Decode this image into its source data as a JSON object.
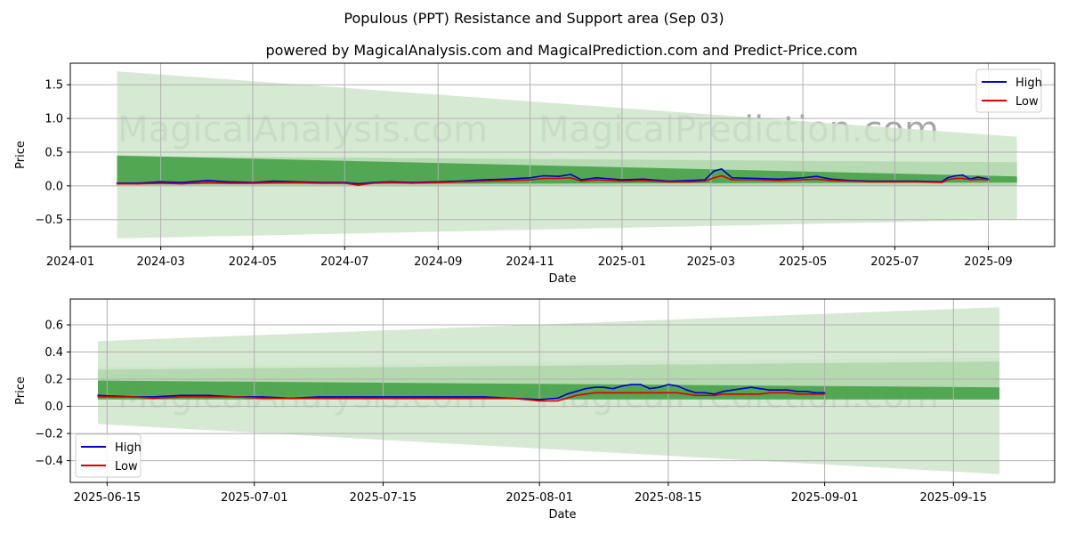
{
  "suptitle": "Populous (PPT) Resistance and Support area (Sep 03)",
  "title": "powered by MagicalAnalysis.com and MagicalPrediction.com and Predict-Price.com",
  "watermarks": [
    "MagicalAnalysis.com",
    "MagicalPrediction.com"
  ],
  "colors": {
    "high": "#0000cc",
    "low": "#dd0000",
    "band_light": "#cfe6cb",
    "band_mid": "#a8d3a2",
    "band_dark": "#3f9e42"
  },
  "chart_data": [
    {
      "type": "line",
      "title": "powered by MagicalAnalysis.com and MagicalPrediction.com and Predict-Price.com",
      "xlabel": "Date",
      "ylabel": "Price",
      "ylim": [
        -0.9,
        1.82
      ],
      "xlim": [
        "2024-01-01",
        "2025-10-15"
      ],
      "xticks": [
        "2024-01",
        "2024-03",
        "2024-05",
        "2024-07",
        "2024-09",
        "2024-11",
        "2025-01",
        "2025-03",
        "2025-05",
        "2025-07",
        "2025-09"
      ],
      "yticks": [
        -0.5,
        0.0,
        0.5,
        1.0,
        1.5
      ],
      "ytick_labels": [
        "−0.5",
        "0.0",
        "0.5",
        "1.0",
        "1.5"
      ],
      "grid": true,
      "legend": "upper right",
      "bands": [
        {
          "x": [
            "2024-02-01",
            "2025-09-20"
          ],
          "upper": [
            1.7,
            0.73
          ],
          "lower": [
            -0.78,
            -0.5
          ],
          "shade": "light"
        },
        {
          "x": [
            "2024-02-01",
            "2025-09-20"
          ],
          "upper": [
            0.44,
            0.35
          ],
          "lower": [
            0.0,
            0.0
          ],
          "shade": "mid"
        },
        {
          "x": [
            "2024-02-01",
            "2025-09-20"
          ],
          "upper": [
            0.45,
            0.14
          ],
          "lower": [
            0.02,
            0.05
          ],
          "shade": "dark"
        }
      ],
      "series": [
        {
          "name": "High",
          "color": "#0000cc",
          "x": [
            "2024-02-01",
            "2024-02-15",
            "2024-03-01",
            "2024-03-15",
            "2024-04-01",
            "2024-04-15",
            "2024-05-01",
            "2024-05-15",
            "2024-06-01",
            "2024-06-15",
            "2024-07-01",
            "2024-07-10",
            "2024-07-20",
            "2024-08-01",
            "2024-08-15",
            "2024-09-01",
            "2024-09-15",
            "2024-10-01",
            "2024-10-15",
            "2024-11-01",
            "2024-11-10",
            "2024-11-20",
            "2024-11-28",
            "2024-12-05",
            "2024-12-15",
            "2025-01-01",
            "2025-01-15",
            "2025-02-01",
            "2025-02-15",
            "2025-02-25",
            "2025-03-03",
            "2025-03-08",
            "2025-03-15",
            "2025-04-01",
            "2025-04-15",
            "2025-05-01",
            "2025-05-10",
            "2025-05-20",
            "2025-06-01",
            "2025-06-15",
            "2025-07-01",
            "2025-07-15",
            "2025-08-01",
            "2025-08-05",
            "2025-08-10",
            "2025-08-15",
            "2025-08-20",
            "2025-08-25",
            "2025-09-01"
          ],
          "values": [
            0.04,
            0.04,
            0.06,
            0.05,
            0.08,
            0.06,
            0.05,
            0.07,
            0.06,
            0.05,
            0.05,
            0.03,
            0.05,
            0.06,
            0.05,
            0.06,
            0.07,
            0.09,
            0.1,
            0.12,
            0.15,
            0.14,
            0.17,
            0.09,
            0.12,
            0.09,
            0.1,
            0.07,
            0.08,
            0.09,
            0.22,
            0.25,
            0.12,
            0.11,
            0.1,
            0.12,
            0.14,
            0.1,
            0.08,
            0.07,
            0.07,
            0.07,
            0.06,
            0.12,
            0.15,
            0.16,
            0.1,
            0.13,
            0.1
          ]
        },
        {
          "name": "Low",
          "color": "#dd0000",
          "x": [
            "2024-02-01",
            "2024-02-15",
            "2024-03-01",
            "2024-03-15",
            "2024-04-01",
            "2024-04-15",
            "2024-05-01",
            "2024-05-15",
            "2024-06-01",
            "2024-06-15",
            "2024-07-01",
            "2024-07-10",
            "2024-07-20",
            "2024-08-01",
            "2024-08-15",
            "2024-09-01",
            "2024-09-15",
            "2024-10-01",
            "2024-10-15",
            "2024-11-01",
            "2024-11-10",
            "2024-11-20",
            "2024-11-28",
            "2024-12-05",
            "2024-12-15",
            "2025-01-01",
            "2025-01-15",
            "2025-02-01",
            "2025-02-15",
            "2025-02-25",
            "2025-03-03",
            "2025-03-08",
            "2025-03-15",
            "2025-04-01",
            "2025-04-15",
            "2025-05-01",
            "2025-05-10",
            "2025-05-20",
            "2025-06-01",
            "2025-06-15",
            "2025-07-01",
            "2025-07-15",
            "2025-08-01",
            "2025-08-05",
            "2025-08-10",
            "2025-08-15",
            "2025-08-20",
            "2025-08-25",
            "2025-09-01"
          ],
          "values": [
            0.03,
            0.03,
            0.04,
            0.03,
            0.05,
            0.04,
            0.04,
            0.05,
            0.05,
            0.04,
            0.04,
            0.01,
            0.04,
            0.05,
            0.04,
            0.05,
            0.06,
            0.07,
            0.08,
            0.09,
            0.11,
            0.11,
            0.12,
            0.07,
            0.09,
            0.07,
            0.08,
            0.06,
            0.06,
            0.07,
            0.12,
            0.15,
            0.09,
            0.09,
            0.08,
            0.09,
            0.1,
            0.08,
            0.07,
            0.06,
            0.06,
            0.06,
            0.05,
            0.09,
            0.11,
            0.11,
            0.09,
            0.1,
            0.09
          ]
        }
      ]
    },
    {
      "type": "line",
      "xlabel": "Date",
      "ylabel": "Price",
      "ylim": [
        -0.56,
        0.79
      ],
      "xlim": [
        "2025-06-11",
        "2025-09-26"
      ],
      "xticks": [
        "2025-06-15",
        "2025-07-01",
        "2025-07-15",
        "2025-08-01",
        "2025-08-15",
        "2025-09-01",
        "2025-09-15"
      ],
      "yticks": [
        -0.4,
        -0.2,
        0.0,
        0.2,
        0.4,
        0.6
      ],
      "ytick_labels": [
        "−0.4",
        "−0.2",
        "0.0",
        "0.2",
        "0.4",
        "0.6"
      ],
      "grid": true,
      "legend": "lower left",
      "bands": [
        {
          "x": [
            "2025-06-14",
            "2025-09-20"
          ],
          "upper": [
            0.48,
            0.73
          ],
          "lower": [
            -0.13,
            -0.5
          ],
          "shade": "light"
        },
        {
          "x": [
            "2025-06-14",
            "2025-09-20"
          ],
          "upper": [
            0.29,
            0.36
          ],
          "lower": [
            0.08,
            0.05
          ],
          "shade": "light"
        },
        {
          "x": [
            "2025-06-14",
            "2025-09-20"
          ],
          "upper": [
            0.27,
            0.33
          ],
          "lower": [
            0.09,
            0.06
          ],
          "shade": "mid"
        },
        {
          "x": [
            "2025-06-14",
            "2025-09-20"
          ],
          "upper": [
            0.19,
            0.14
          ],
          "lower": [
            0.05,
            0.05
          ],
          "shade": "dark"
        }
      ],
      "series": [
        {
          "name": "High",
          "color": "#0000cc",
          "x": [
            "2025-06-14",
            "2025-06-18",
            "2025-06-20",
            "2025-06-23",
            "2025-06-26",
            "2025-06-29",
            "2025-07-02",
            "2025-07-05",
            "2025-07-08",
            "2025-07-11",
            "2025-07-14",
            "2025-07-17",
            "2025-07-20",
            "2025-07-23",
            "2025-07-26",
            "2025-07-29",
            "2025-08-01",
            "2025-08-03",
            "2025-08-04",
            "2025-08-05",
            "2025-08-06",
            "2025-08-07",
            "2025-08-08",
            "2025-08-09",
            "2025-08-10",
            "2025-08-11",
            "2025-08-12",
            "2025-08-13",
            "2025-08-14",
            "2025-08-15",
            "2025-08-16",
            "2025-08-17",
            "2025-08-18",
            "2025-08-19",
            "2025-08-20",
            "2025-08-21",
            "2025-08-22",
            "2025-08-23",
            "2025-08-24",
            "2025-08-25",
            "2025-08-26",
            "2025-08-27",
            "2025-08-28",
            "2025-08-29",
            "2025-08-30",
            "2025-08-31",
            "2025-09-01"
          ],
          "values": [
            0.08,
            0.07,
            0.07,
            0.08,
            0.08,
            0.07,
            0.07,
            0.06,
            0.07,
            0.07,
            0.07,
            0.07,
            0.07,
            0.07,
            0.07,
            0.06,
            0.05,
            0.06,
            0.09,
            0.11,
            0.13,
            0.14,
            0.14,
            0.13,
            0.15,
            0.16,
            0.16,
            0.13,
            0.14,
            0.16,
            0.15,
            0.12,
            0.1,
            0.1,
            0.09,
            0.11,
            0.12,
            0.13,
            0.14,
            0.13,
            0.12,
            0.12,
            0.12,
            0.11,
            0.11,
            0.1,
            0.1
          ]
        },
        {
          "name": "Low",
          "color": "#dd0000",
          "x": [
            "2025-06-14",
            "2025-06-18",
            "2025-06-20",
            "2025-06-23",
            "2025-06-26",
            "2025-06-29",
            "2025-07-02",
            "2025-07-05",
            "2025-07-08",
            "2025-07-11",
            "2025-07-14",
            "2025-07-17",
            "2025-07-20",
            "2025-07-23",
            "2025-07-26",
            "2025-07-29",
            "2025-08-01",
            "2025-08-03",
            "2025-08-04",
            "2025-08-05",
            "2025-08-06",
            "2025-08-07",
            "2025-08-08",
            "2025-08-09",
            "2025-08-10",
            "2025-08-11",
            "2025-08-12",
            "2025-08-13",
            "2025-08-14",
            "2025-08-15",
            "2025-08-16",
            "2025-08-17",
            "2025-08-18",
            "2025-08-19",
            "2025-08-20",
            "2025-08-21",
            "2025-08-22",
            "2025-08-23",
            "2025-08-24",
            "2025-08-25",
            "2025-08-26",
            "2025-08-27",
            "2025-08-28",
            "2025-08-29",
            "2025-08-30",
            "2025-08-31",
            "2025-09-01"
          ],
          "values": [
            0.07,
            0.07,
            0.06,
            0.07,
            0.07,
            0.07,
            0.06,
            0.06,
            0.06,
            0.06,
            0.06,
            0.06,
            0.06,
            0.06,
            0.06,
            0.06,
            0.04,
            0.04,
            0.06,
            0.08,
            0.09,
            0.1,
            0.1,
            0.1,
            0.1,
            0.1,
            0.1,
            0.1,
            0.1,
            0.1,
            0.1,
            0.09,
            0.08,
            0.08,
            0.08,
            0.09,
            0.09,
            0.09,
            0.09,
            0.09,
            0.1,
            0.1,
            0.1,
            0.09,
            0.09,
            0.09,
            0.09
          ]
        }
      ]
    }
  ]
}
